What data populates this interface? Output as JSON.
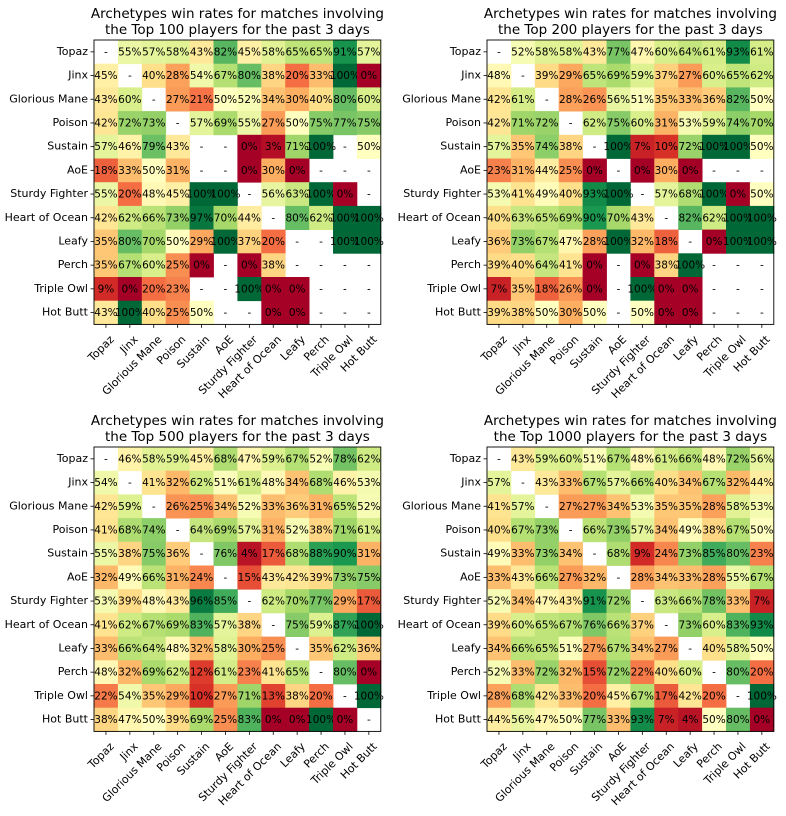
{
  "chart_data": [
    {
      "type": "heatmap",
      "title": "Archetypes win rates for matches involving\nthe Top 100 players for the past 3 days",
      "xlabel": "",
      "ylabel": "",
      "rows": [
        "Topaz",
        "Jinx",
        "Glorious Mane",
        "Poison",
        "Sustain",
        "AoE",
        "Sturdy Fighter",
        "Heart of Ocean",
        "Leafy",
        "Perch",
        "Triple Owl",
        "Hot Butt"
      ],
      "cols": [
        "Topaz",
        "Jinx",
        "Glorious Mane",
        "Poison",
        "Sustain",
        "AoE",
        "Sturdy Fighter",
        "Heart of Ocean",
        "Leafy",
        "Perch",
        "Triple Owl",
        "Hot Butt"
      ],
      "values": [
        [
          null,
          55,
          57,
          58,
          43,
          82,
          45,
          58,
          65,
          65,
          91,
          57
        ],
        [
          45,
          null,
          40,
          28,
          54,
          67,
          80,
          38,
          20,
          33,
          100,
          0
        ],
        [
          43,
          60,
          null,
          27,
          21,
          50,
          52,
          34,
          30,
          40,
          80,
          60
        ],
        [
          42,
          72,
          73,
          null,
          57,
          69,
          55,
          27,
          50,
          75,
          77,
          75
        ],
        [
          57,
          46,
          79,
          43,
          null,
          null,
          0,
          3,
          71,
          100,
          null,
          50
        ],
        [
          18,
          33,
          50,
          31,
          null,
          null,
          0,
          30,
          0,
          null,
          null,
          null
        ],
        [
          55,
          20,
          48,
          45,
          100,
          100,
          null,
          56,
          63,
          100,
          0,
          null
        ],
        [
          42,
          62,
          66,
          73,
          97,
          70,
          44,
          null,
          80,
          62,
          100,
          100
        ],
        [
          35,
          80,
          70,
          50,
          29,
          100,
          37,
          20,
          null,
          null,
          100,
          100
        ],
        [
          35,
          67,
          60,
          25,
          0,
          null,
          0,
          38,
          null,
          null,
          null,
          null
        ],
        [
          9,
          0,
          20,
          23,
          null,
          null,
          100,
          0,
          0,
          null,
          null,
          null
        ],
        [
          43,
          100,
          40,
          25,
          50,
          null,
          null,
          0,
          0,
          null,
          null,
          null
        ]
      ]
    },
    {
      "type": "heatmap",
      "title": "Archetypes win rates for matches involving\nthe Top 200 players for the past 3 days",
      "xlabel": "",
      "ylabel": "",
      "rows": [
        "Topaz",
        "Jinx",
        "Glorious Mane",
        "Poison",
        "Sustain",
        "AoE",
        "Sturdy Fighter",
        "Heart of Ocean",
        "Leafy",
        "Perch",
        "Triple Owl",
        "Hot Butt"
      ],
      "cols": [
        "Topaz",
        "Jinx",
        "Glorious Mane",
        "Poison",
        "Sustain",
        "AoE",
        "Sturdy Fighter",
        "Heart of Ocean",
        "Leafy",
        "Perch",
        "Triple Owl",
        "Hot Butt"
      ],
      "values": [
        [
          null,
          52,
          58,
          58,
          43,
          77,
          47,
          60,
          64,
          61,
          93,
          61
        ],
        [
          48,
          null,
          39,
          29,
          65,
          69,
          59,
          37,
          27,
          60,
          65,
          62
        ],
        [
          42,
          61,
          null,
          28,
          26,
          56,
          51,
          35,
          33,
          36,
          82,
          50
        ],
        [
          42,
          71,
          72,
          null,
          62,
          75,
          60,
          31,
          53,
          59,
          74,
          70
        ],
        [
          57,
          35,
          74,
          38,
          null,
          100,
          7,
          10,
          72,
          100,
          100,
          50
        ],
        [
          23,
          31,
          44,
          25,
          0,
          null,
          0,
          30,
          0,
          null,
          null,
          null
        ],
        [
          53,
          41,
          49,
          40,
          93,
          100,
          null,
          57,
          68,
          100,
          0,
          50
        ],
        [
          40,
          63,
          65,
          69,
          90,
          70,
          43,
          null,
          82,
          62,
          100,
          100
        ],
        [
          36,
          73,
          67,
          47,
          28,
          100,
          32,
          18,
          null,
          0,
          100,
          100
        ],
        [
          39,
          40,
          64,
          41,
          0,
          null,
          0,
          38,
          100,
          null,
          null,
          null
        ],
        [
          7,
          35,
          18,
          26,
          0,
          null,
          100,
          0,
          0,
          null,
          null,
          null
        ],
        [
          39,
          38,
          50,
          30,
          50,
          null,
          50,
          0,
          0,
          null,
          null,
          null
        ]
      ]
    },
    {
      "type": "heatmap",
      "title": "Archetypes win rates for matches involving\nthe Top 500 players for the past 3 days",
      "xlabel": "",
      "ylabel": "",
      "rows": [
        "Topaz",
        "Jinx",
        "Glorious Mane",
        "Poison",
        "Sustain",
        "AoE",
        "Sturdy Fighter",
        "Heart of Ocean",
        "Leafy",
        "Perch",
        "Triple Owl",
        "Hot Butt"
      ],
      "cols": [
        "Topaz",
        "Jinx",
        "Glorious Mane",
        "Poison",
        "Sustain",
        "AoE",
        "Sturdy Fighter",
        "Heart of Ocean",
        "Leafy",
        "Perch",
        "Triple Owl",
        "Hot Butt"
      ],
      "values": [
        [
          null,
          46,
          58,
          59,
          45,
          68,
          47,
          59,
          67,
          52,
          78,
          62
        ],
        [
          54,
          null,
          41,
          32,
          62,
          51,
          61,
          48,
          34,
          68,
          46,
          53
        ],
        [
          42,
          59,
          null,
          26,
          25,
          34,
          52,
          33,
          36,
          31,
          65,
          52
        ],
        [
          41,
          68,
          74,
          null,
          64,
          69,
          57,
          31,
          52,
          38,
          71,
          61
        ],
        [
          55,
          38,
          75,
          36,
          null,
          76,
          4,
          17,
          68,
          88,
          90,
          31
        ],
        [
          32,
          49,
          66,
          31,
          24,
          null,
          15,
          43,
          42,
          39,
          73,
          75
        ],
        [
          53,
          39,
          48,
          43,
          96,
          85,
          null,
          62,
          70,
          77,
          29,
          17
        ],
        [
          41,
          62,
          67,
          69,
          83,
          57,
          38,
          null,
          75,
          59,
          87,
          100
        ],
        [
          33,
          66,
          64,
          48,
          32,
          58,
          30,
          25,
          null,
          35,
          62,
          36
        ],
        [
          48,
          32,
          69,
          62,
          12,
          61,
          23,
          41,
          65,
          null,
          80,
          0
        ],
        [
          22,
          54,
          35,
          29,
          10,
          27,
          71,
          13,
          38,
          20,
          null,
          100
        ],
        [
          38,
          47,
          50,
          39,
          69,
          25,
          83,
          0,
          0,
          100,
          0,
          null
        ]
      ]
    },
    {
      "type": "heatmap",
      "title": "Archetypes win rates for matches involving\nthe Top 1000 players for the past 3 days",
      "xlabel": "",
      "ylabel": "",
      "rows": [
        "Topaz",
        "Jinx",
        "Glorious Mane",
        "Poison",
        "Sustain",
        "AoE",
        "Sturdy Fighter",
        "Heart of Ocean",
        "Leafy",
        "Perch",
        "Triple Owl",
        "Hot Butt"
      ],
      "cols": [
        "Topaz",
        "Jinx",
        "Glorious Mane",
        "Poison",
        "Sustain",
        "AoE",
        "Sturdy Fighter",
        "Heart of Ocean",
        "Leafy",
        "Perch",
        "Triple Owl",
        "Hot Butt"
      ],
      "values": [
        [
          null,
          43,
          59,
          60,
          51,
          67,
          48,
          61,
          66,
          48,
          72,
          56
        ],
        [
          57,
          null,
          43,
          33,
          67,
          57,
          66,
          40,
          34,
          67,
          32,
          44
        ],
        [
          41,
          57,
          null,
          27,
          27,
          34,
          53,
          35,
          35,
          28,
          58,
          53
        ],
        [
          40,
          67,
          73,
          null,
          66,
          73,
          57,
          34,
          49,
          38,
          67,
          50
        ],
        [
          49,
          33,
          73,
          34,
          null,
          68,
          9,
          24,
          73,
          85,
          80,
          23
        ],
        [
          33,
          43,
          66,
          27,
          32,
          null,
          28,
          34,
          33,
          28,
          55,
          67
        ],
        [
          52,
          34,
          47,
          43,
          91,
          72,
          null,
          63,
          66,
          78,
          33,
          7
        ],
        [
          39,
          60,
          65,
          67,
          76,
          66,
          37,
          null,
          73,
          60,
          83,
          93
        ],
        [
          34,
          66,
          65,
          51,
          27,
          67,
          34,
          27,
          null,
          40,
          58,
          50
        ],
        [
          52,
          33,
          72,
          32,
          15,
          72,
          22,
          40,
          60,
          null,
          80,
          20
        ],
        [
          28,
          68,
          42,
          33,
          20,
          45,
          67,
          17,
          42,
          20,
          null,
          100
        ],
        [
          44,
          56,
          47,
          50,
          77,
          33,
          93,
          7,
          4,
          50,
          80,
          0
        ]
      ]
    }
  ]
}
